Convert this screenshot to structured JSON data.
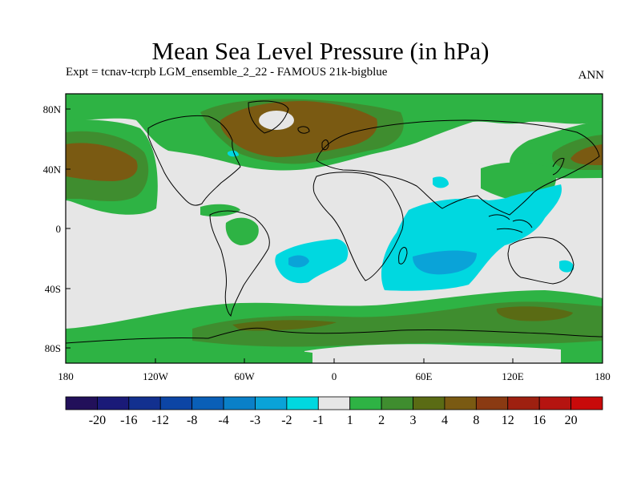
{
  "title": "Mean Sea Level Pressure (in hPa)",
  "subtitle_left": "Expt = tcnav-tcrpb       LGM_ensemble_2_22 - FAMOUS 21k-bigblue",
  "subtitle_right": "ANN",
  "chart_data": {
    "type": "heatmap",
    "projection": "equirectangular",
    "lon_range": [
      -180,
      180
    ],
    "lat_range": [
      -90,
      90
    ],
    "x_tick_labels": [
      "180",
      "120W",
      "60W",
      "0",
      "60E",
      "120E",
      "180"
    ],
    "y_tick_labels": [
      "80N",
      "40N",
      "0",
      "40S",
      "80S"
    ],
    "colorbar_labels": [
      "-20",
      "-16",
      "-12",
      "-8",
      "-4",
      "-3",
      "-2",
      "-1",
      "1",
      "2",
      "3",
      "4",
      "8",
      "12",
      "16",
      "20"
    ],
    "colors": {
      "lt_m20": "#22105a",
      "m20_m16": "#1a1a78",
      "m16_m12": "#12308f",
      "m12_m8": "#0c45a5",
      "m8_m4": "#0a5fb7",
      "m4_m3": "#0a80c8",
      "m3_m2": "#0aa3d8",
      "m2_m1": "#00d8e0",
      "m1_1": "#e6e6e6",
      "1_2": "#2eb344",
      "2_3": "#3f8d2f",
      "3_4": "#5a6b14",
      "4_8": "#7a5a12",
      "8_12": "#8a3a12",
      "12_16": "#9e2010",
      "16_20": "#b51410",
      "gt_20": "#c80a0a"
    }
  }
}
